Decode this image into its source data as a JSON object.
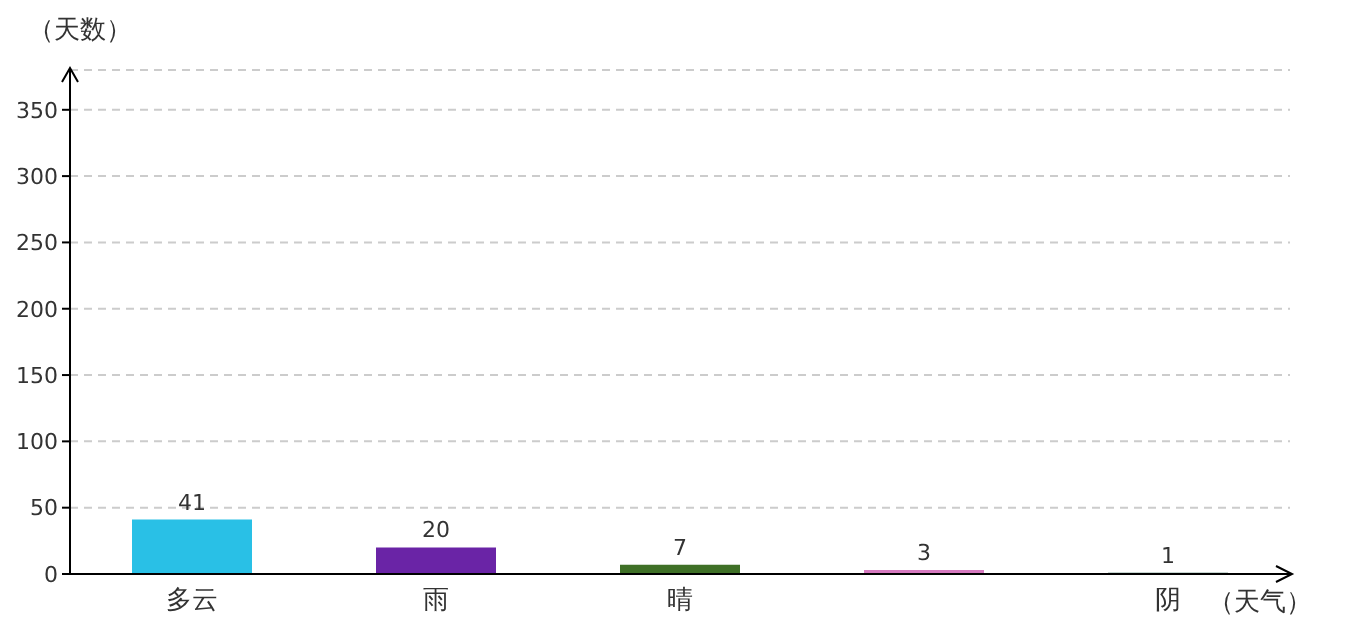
{
  "chart_data": {
    "type": "bar",
    "xlabel": "（天气）",
    "ylabel": "（天数）",
    "categories": [
      "多云",
      "雨",
      "晴",
      null,
      "阴"
    ],
    "values": [
      41,
      20,
      7,
      3,
      1
    ],
    "colors": [
      "#29c0e6",
      "#6a24a6",
      "#3f7027",
      "#d67ac0",
      "#1f5a46"
    ],
    "ylim": [
      0,
      380
    ],
    "yticks": [
      0,
      50,
      100,
      150,
      200,
      250,
      300,
      350
    ],
    "grid": "y",
    "data_labels": true
  }
}
